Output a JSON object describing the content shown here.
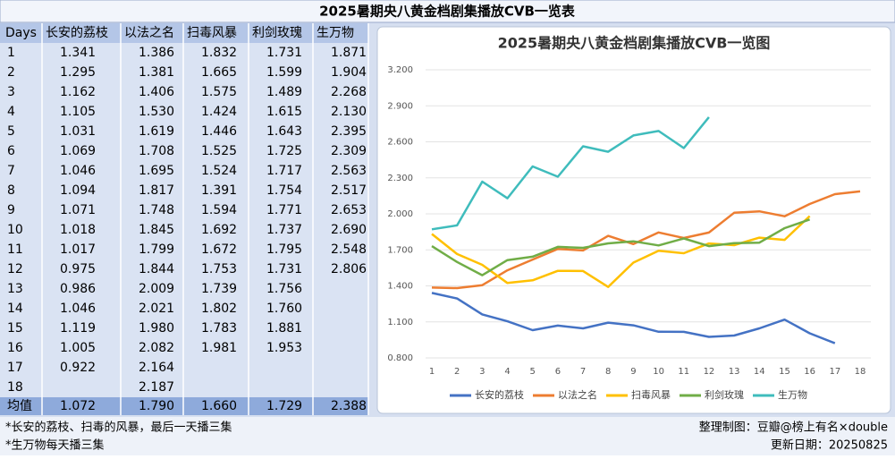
{
  "title": "2025暑期央八黄金档剧集播放CVB一览表",
  "table": {
    "header": [
      "Days",
      "长安的荔枝",
      "以法之名",
      "扫毒风暴",
      "利剑玫瑰",
      "生万物"
    ],
    "rows": [
      [
        "1",
        "1.341",
        "1.386",
        "1.832",
        "1.731",
        "1.871"
      ],
      [
        "2",
        "1.295",
        "1.381",
        "1.665",
        "1.599",
        "1.904"
      ],
      [
        "3",
        "1.162",
        "1.406",
        "1.575",
        "1.489",
        "2.268"
      ],
      [
        "4",
        "1.105",
        "1.530",
        "1.424",
        "1.615",
        "2.130"
      ],
      [
        "5",
        "1.031",
        "1.619",
        "1.446",
        "1.643",
        "2.395"
      ],
      [
        "6",
        "1.069",
        "1.708",
        "1.525",
        "1.725",
        "2.309"
      ],
      [
        "7",
        "1.046",
        "1.695",
        "1.524",
        "1.717",
        "2.563"
      ],
      [
        "8",
        "1.094",
        "1.817",
        "1.391",
        "1.754",
        "2.517"
      ],
      [
        "9",
        "1.071",
        "1.748",
        "1.594",
        "1.771",
        "2.653"
      ],
      [
        "10",
        "1.018",
        "1.845",
        "1.692",
        "1.737",
        "2.690"
      ],
      [
        "11",
        "1.017",
        "1.799",
        "1.672",
        "1.795",
        "2.548"
      ],
      [
        "12",
        "0.975",
        "1.844",
        "1.753",
        "1.731",
        "2.806"
      ],
      [
        "13",
        "0.986",
        "2.009",
        "1.739",
        "1.756",
        null
      ],
      [
        "14",
        "1.046",
        "2.021",
        "1.802",
        "1.760",
        null
      ],
      [
        "15",
        "1.119",
        "1.980",
        "1.783",
        "1.881",
        null
      ],
      [
        "16",
        "1.005",
        "2.082",
        "1.981",
        "1.953",
        null
      ],
      [
        "17",
        "0.922",
        "2.164",
        null,
        null,
        null
      ],
      [
        "18",
        null,
        "2.187",
        null,
        null,
        null
      ]
    ],
    "footer_row": [
      "均值",
      "1.072",
      "1.790",
      "1.660",
      "1.729",
      "2.388"
    ]
  },
  "chart_data": {
    "type": "line",
    "title": "2025暑期央八黄金档剧集播放CVB一览图",
    "categories": [
      "1",
      "2",
      "3",
      "4",
      "5",
      "6",
      "7",
      "8",
      "9",
      "10",
      "11",
      "12",
      "13",
      "14",
      "15",
      "16",
      "17",
      "18"
    ],
    "series": [
      {
        "name": "长安的荔枝",
        "color": "#4472c4",
        "values": [
          1.341,
          1.295,
          1.162,
          1.105,
          1.031,
          1.069,
          1.046,
          1.094,
          1.071,
          1.018,
          1.017,
          0.975,
          0.986,
          1.046,
          1.119,
          1.005,
          0.922,
          null
        ]
      },
      {
        "name": "以法之名",
        "color": "#ed7d31",
        "values": [
          1.386,
          1.381,
          1.406,
          1.53,
          1.619,
          1.708,
          1.695,
          1.817,
          1.748,
          1.845,
          1.799,
          1.844,
          2.009,
          2.021,
          1.98,
          2.082,
          2.164,
          2.187
        ]
      },
      {
        "name": "扫毒风暴",
        "color": "#ffc000",
        "values": [
          1.832,
          1.665,
          1.575,
          1.424,
          1.446,
          1.525,
          1.524,
          1.391,
          1.594,
          1.692,
          1.672,
          1.753,
          1.739,
          1.802,
          1.783,
          1.981,
          null,
          null
        ]
      },
      {
        "name": "利剑玫瑰",
        "color": "#70ad47",
        "values": [
          1.731,
          1.599,
          1.489,
          1.615,
          1.643,
          1.725,
          1.717,
          1.754,
          1.771,
          1.737,
          1.795,
          1.731,
          1.756,
          1.76,
          1.881,
          1.953,
          null,
          null
        ]
      },
      {
        "name": "生万物",
        "color": "#3fbcbc",
        "values": [
          1.871,
          1.904,
          2.268,
          2.13,
          2.395,
          2.309,
          2.563,
          2.517,
          2.653,
          2.69,
          2.548,
          2.806,
          null,
          null,
          null,
          null,
          null,
          null
        ]
      }
    ],
    "ylim": [
      0.8,
      3.2
    ],
    "yticks": [
      {
        "value": 0.8,
        "label": "0.800"
      },
      {
        "value": 1.1,
        "label": "1.100"
      },
      {
        "value": 1.4,
        "label": "1.400"
      },
      {
        "value": 1.7,
        "label": "1.700"
      },
      {
        "value": 2.0,
        "label": "2.000"
      },
      {
        "value": 2.3,
        "label": "2.300"
      },
      {
        "value": 2.6,
        "label": "2.600"
      },
      {
        "value": 2.9,
        "label": "2.900"
      },
      {
        "value": 3.2,
        "label": "3.200"
      }
    ],
    "grid": true,
    "legend": "bottom"
  },
  "notes": [
    "*长安的荔枝、扫毒的风暴，最后一天播三集",
    "*生万物每天播三集"
  ],
  "credit": "整理制图：豆瓣@榜上有名×double",
  "date": "更新日期：20250825"
}
